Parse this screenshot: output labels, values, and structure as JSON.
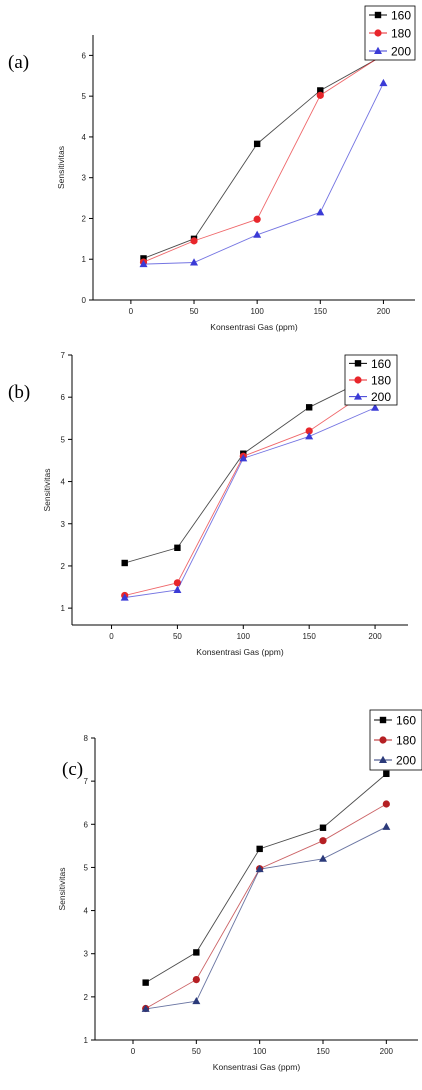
{
  "chart_data": [
    {
      "type": "line",
      "panel_label": "(a)",
      "xlabel": "Konsentrasi Gas (ppm)",
      "ylabel": "Sensitivitas",
      "x": [
        10,
        50,
        100,
        150,
        200
      ],
      "xticks": [
        0,
        50,
        100,
        150,
        200
      ],
      "yticks": [
        0,
        1,
        2,
        3,
        4,
        5,
        6
      ],
      "xlim": [
        -30,
        225
      ],
      "ylim": [
        0,
        6.5
      ],
      "legend": "top-right",
      "grid": false,
      "series": [
        {
          "name": "160",
          "marker": "square",
          "color": "#000000",
          "values": [
            1.02,
            1.5,
            3.83,
            5.14,
            6.0
          ]
        },
        {
          "name": "180",
          "marker": "circle",
          "color": "#e8262b",
          "values": [
            0.93,
            1.45,
            1.98,
            5.02,
            6.02
          ]
        },
        {
          "name": "200",
          "marker": "triangle",
          "color": "#3b3bd6",
          "values": [
            0.88,
            0.92,
            1.6,
            2.15,
            5.32
          ]
        }
      ]
    },
    {
      "type": "line",
      "panel_label": "(b)",
      "xlabel": "Konsentrasi Gas (ppm)",
      "ylabel": "Sensitivitas",
      "x": [
        10,
        50,
        100,
        150,
        200
      ],
      "xticks": [
        0,
        50,
        100,
        150,
        200
      ],
      "yticks": [
        1,
        2,
        3,
        4,
        5,
        6,
        7
      ],
      "xlim": [
        -30,
        225
      ],
      "ylim": [
        0.6,
        7
      ],
      "legend": "top-right",
      "grid": false,
      "series": [
        {
          "name": "160",
          "marker": "square",
          "color": "#000000",
          "values": [
            2.07,
            2.43,
            4.66,
            5.76,
            6.53
          ]
        },
        {
          "name": "180",
          "marker": "circle",
          "color": "#e8262b",
          "values": [
            1.3,
            1.6,
            4.6,
            5.2,
            6.25
          ]
        },
        {
          "name": "200",
          "marker": "triangle",
          "color": "#3b3bd6",
          "values": [
            1.25,
            1.43,
            4.55,
            5.07,
            5.75
          ]
        }
      ]
    },
    {
      "type": "line",
      "panel_label": "(c)",
      "xlabel": "Konsentrasi Gas (ppm)",
      "ylabel": "Sensitivitas",
      "x": [
        10,
        50,
        100,
        150,
        200
      ],
      "xticks": [
        0,
        50,
        100,
        150,
        200
      ],
      "yticks": [
        1,
        2,
        3,
        4,
        5,
        6,
        7,
        8
      ],
      "xlim": [
        -30,
        225
      ],
      "ylim": [
        1,
        8
      ],
      "legend": "top-right",
      "grid": false,
      "series": [
        {
          "name": "160",
          "marker": "square",
          "color": "#000000",
          "values": [
            2.33,
            3.03,
            5.43,
            5.92,
            7.17
          ]
        },
        {
          "name": "180",
          "marker": "circle",
          "color": "#b51f23",
          "values": [
            1.73,
            2.4,
            4.97,
            5.62,
            6.47
          ]
        },
        {
          "name": "200",
          "marker": "triangle",
          "color": "#2b3a7a",
          "values": [
            1.72,
            1.9,
            4.96,
            5.2,
            5.94
          ]
        }
      ]
    }
  ]
}
